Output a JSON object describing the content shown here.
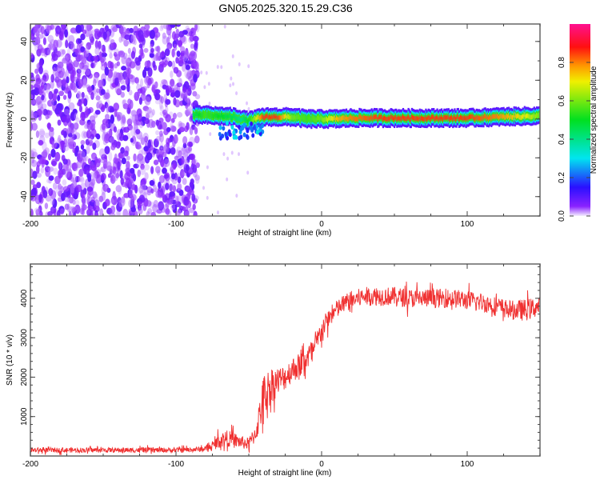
{
  "title": "GN05.2025.320.15.29.C36",
  "chart_data": [
    {
      "type": "heatmap",
      "xlabel": "Height of straight line (km)",
      "ylabel": "Frequency (Hz)",
      "xlim": [
        -200,
        150
      ],
      "ylim": [
        -50,
        49
      ],
      "xticks": [
        "-200",
        "-100",
        "0",
        "100"
      ],
      "xtick_values": [
        -200,
        -100,
        0,
        100
      ],
      "yticks": [
        "40",
        "20",
        "0",
        "-20",
        "-40"
      ],
      "ytick_values": [
        40,
        20,
        0,
        -20,
        -40
      ],
      "noise_region_x": [
        -200,
        -88
      ],
      "ridge": {
        "x": [
          -88,
          -80,
          -70,
          -60,
          -55,
          -50,
          -40,
          -30,
          -20,
          -10,
          0,
          10,
          20,
          40,
          60,
          80,
          100,
          120,
          140,
          150
        ],
        "freq": [
          2,
          2,
          1.5,
          1,
          0,
          -1,
          1,
          1,
          1,
          0,
          0,
          0,
          0.5,
          0.5,
          0.5,
          0.5,
          0.5,
          1,
          1.5,
          1.5
        ],
        "amplitude": [
          0.45,
          0.55,
          0.5,
          0.45,
          0.4,
          0.5,
          0.85,
          0.85,
          0.6,
          0.55,
          0.6,
          0.75,
          0.8,
          0.85,
          0.85,
          0.85,
          0.85,
          0.8,
          0.7,
          0.6
        ]
      },
      "colorbar": {
        "label": "Normalized spectral amplitude",
        "ticks": [
          "0.0",
          "0.2",
          "0.4",
          "0.6",
          "0.8"
        ],
        "tick_values": [
          0,
          0.2,
          0.4,
          0.6,
          0.8
        ],
        "range": [
          0,
          1
        ],
        "stops": [
          {
            "v": 0.0,
            "c": "#f4eeff"
          },
          {
            "v": 0.05,
            "c": "#8a22ff"
          },
          {
            "v": 0.15,
            "c": "#2a10ff"
          },
          {
            "v": 0.3,
            "c": "#00e5f0"
          },
          {
            "v": 0.5,
            "c": "#00e020"
          },
          {
            "v": 0.7,
            "c": "#f0f000"
          },
          {
            "v": 0.78,
            "c": "#ff9a00"
          },
          {
            "v": 0.88,
            "c": "#ff1010"
          },
          {
            "v": 1.0,
            "c": "#ff1090"
          }
        ]
      }
    },
    {
      "type": "line",
      "xlabel": "Height of straight line (km)",
      "ylabel": "SNR (10 * v/v)",
      "xlim": [
        -200,
        150
      ],
      "ylim": [
        0,
        4870
      ],
      "xticks": [
        "-200",
        "-100",
        "0",
        "100"
      ],
      "xtick_values": [
        -200,
        -100,
        0,
        100
      ],
      "yticks": [
        "1000",
        "2000",
        "3000",
        "4000"
      ],
      "ytick_values": [
        1000,
        2000,
        3000,
        4000
      ],
      "series": [
        {
          "name": "SNR",
          "color": "#f03030",
          "x": [
            -200,
            -190,
            -180,
            -170,
            -160,
            -150,
            -140,
            -130,
            -120,
            -110,
            -100,
            -90,
            -80,
            -75,
            -70,
            -65,
            -60,
            -55,
            -50,
            -45,
            -40,
            -35,
            -30,
            -25,
            -20,
            -15,
            -10,
            -5,
            0,
            5,
            10,
            15,
            20,
            25,
            30,
            40,
            50,
            60,
            70,
            80,
            90,
            100,
            110,
            120,
            130,
            140,
            150
          ],
          "values": [
            150,
            150,
            150,
            150,
            150,
            150,
            150,
            150,
            150,
            150,
            150,
            160,
            180,
            250,
            400,
            450,
            400,
            350,
            300,
            600,
            1500,
            1800,
            1900,
            2000,
            2200,
            2300,
            2500,
            2700,
            3200,
            3500,
            3700,
            3850,
            3950,
            4000,
            4050,
            4050,
            4050,
            4000,
            4000,
            4000,
            4000,
            3950,
            3900,
            3800,
            3700,
            3700,
            3800
          ],
          "noise": [
            80,
            80,
            80,
            80,
            80,
            80,
            80,
            80,
            80,
            80,
            80,
            80,
            90,
            120,
            250,
            250,
            250,
            200,
            200,
            300,
            700,
            600,
            450,
            400,
            400,
            400,
            400,
            400,
            350,
            300,
            300,
            300,
            300,
            300,
            300,
            300,
            300,
            300,
            300,
            300,
            300,
            300,
            300,
            300,
            300,
            350,
            300
          ]
        }
      ]
    }
  ]
}
